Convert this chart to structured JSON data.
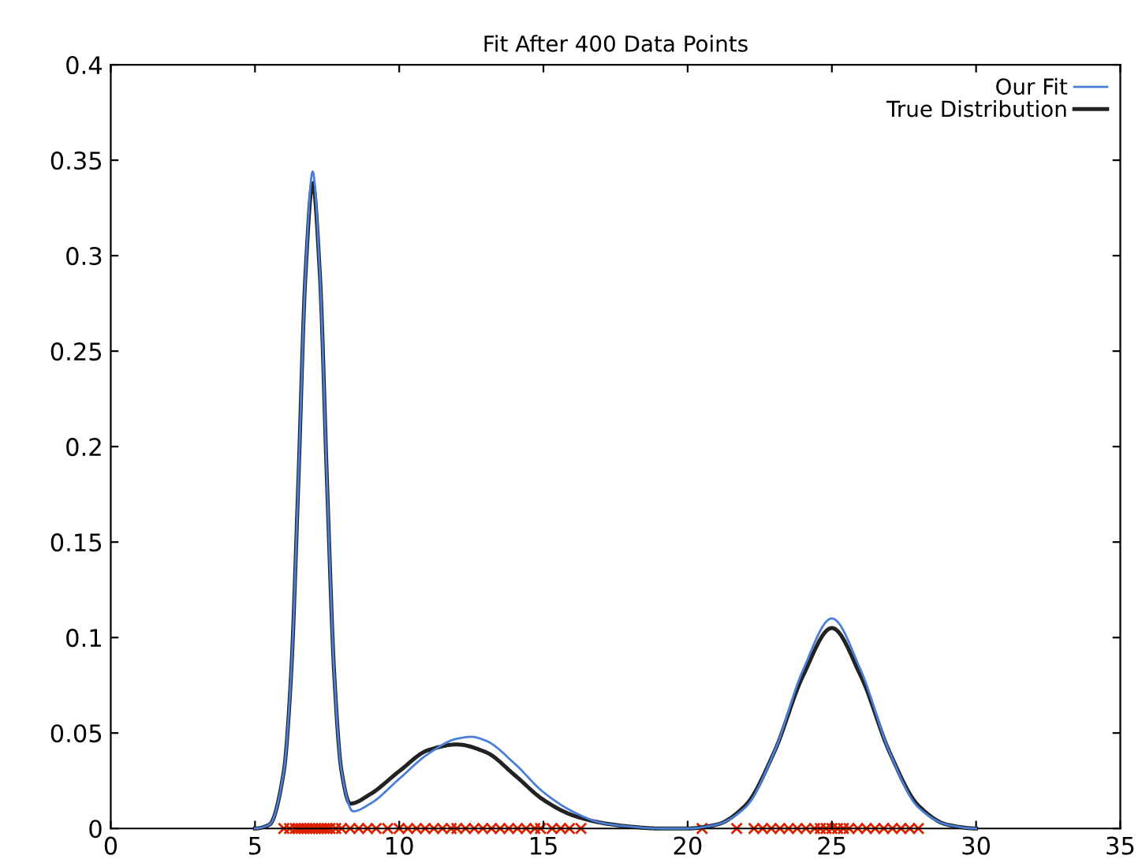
{
  "chart_data": {
    "type": "line",
    "title": "Fit After 400 Data Points",
    "xlim": [
      0,
      35
    ],
    "xticks": [
      0,
      5,
      10,
      15,
      20,
      25,
      30,
      35
    ],
    "ylim": [
      0,
      0.4
    ],
    "yticks": [
      0,
      0.05,
      0.1,
      0.15,
      0.2,
      0.25,
      0.3,
      0.35,
      0.4
    ],
    "grid": false,
    "legend": "top right",
    "line_style": "solid",
    "marker": "none",
    "series": [
      {
        "name": "Our Fit",
        "color": "#4a7fd8",
        "x": [
          5,
          5.5,
          6,
          6.25,
          6.5,
          6.75,
          7,
          7.25,
          7.5,
          7.75,
          8,
          8.4,
          9,
          10,
          11,
          12,
          12.5,
          13,
          14,
          15,
          16,
          17,
          18,
          19,
          20,
          21,
          22,
          23,
          24,
          25,
          26,
          27,
          28,
          29,
          30
        ],
        "values": [
          0,
          0.002,
          0.03,
          0.08,
          0.18,
          0.29,
          0.344,
          0.29,
          0.18,
          0.08,
          0.03,
          0.009,
          0.013,
          0.026,
          0.039,
          0.047,
          0.048,
          0.046,
          0.034,
          0.019,
          0.009,
          0.003,
          0.001,
          0,
          0,
          0.002,
          0.011,
          0.04,
          0.083,
          0.11,
          0.083,
          0.04,
          0.011,
          0.002,
          0
        ]
      },
      {
        "name": "True Distribution",
        "color": "#222222",
        "x": [
          5,
          5.5,
          6,
          6.25,
          6.5,
          6.75,
          7,
          7.25,
          7.5,
          7.75,
          8,
          8.3,
          9,
          10,
          11,
          12,
          13,
          14,
          15,
          16,
          17,
          18,
          19,
          20,
          21,
          22,
          23,
          24,
          25,
          26,
          27,
          28,
          29,
          30
        ],
        "values": [
          0,
          0.002,
          0.03,
          0.08,
          0.18,
          0.29,
          0.338,
          0.29,
          0.18,
          0.08,
          0.03,
          0.013,
          0.018,
          0.03,
          0.041,
          0.044,
          0.04,
          0.028,
          0.015,
          0.007,
          0.003,
          0.001,
          0,
          0,
          0.002,
          0.012,
          0.04,
          0.08,
          0.105,
          0.08,
          0.04,
          0.012,
          0.002,
          0
        ]
      },
      {
        "type": "scatter",
        "marker": "cross",
        "color": "#dd2200",
        "x": [
          6.0,
          6.2,
          6.4,
          6.5,
          6.6,
          6.7,
          6.8,
          6.9,
          7.0,
          7.1,
          7.2,
          7.3,
          7.4,
          7.5,
          7.6,
          7.8,
          8.0,
          8.3,
          8.6,
          8.9,
          9.2,
          9.6,
          10.0,
          10.3,
          10.6,
          10.9,
          11.2,
          11.5,
          11.8,
          12.0,
          12.3,
          12.6,
          12.9,
          13.2,
          13.5,
          13.8,
          14.1,
          14.4,
          14.7,
          14.9,
          15.3,
          15.6,
          15.9,
          16.3,
          20.5,
          21.7,
          22.3,
          22.6,
          22.9,
          23.2,
          23.5,
          23.8,
          24.1,
          24.4,
          24.6,
          24.8,
          25.0,
          25.2,
          25.4,
          25.6,
          25.9,
          26.2,
          26.5,
          26.8,
          27.1,
          27.4,
          27.7,
          28.0
        ],
        "values": [
          0,
          0,
          0,
          0,
          0,
          0,
          0,
          0,
          0,
          0,
          0,
          0,
          0,
          0,
          0,
          0,
          0,
          0,
          0,
          0,
          0,
          0,
          0,
          0,
          0,
          0,
          0,
          0,
          0,
          0,
          0,
          0,
          0,
          0,
          0,
          0,
          0,
          0,
          0,
          0,
          0,
          0,
          0,
          0,
          0,
          0,
          0,
          0,
          0,
          0,
          0,
          0,
          0,
          0,
          0,
          0,
          0,
          0,
          0,
          0,
          0,
          0,
          0,
          0,
          0,
          0,
          0,
          0
        ]
      }
    ]
  }
}
